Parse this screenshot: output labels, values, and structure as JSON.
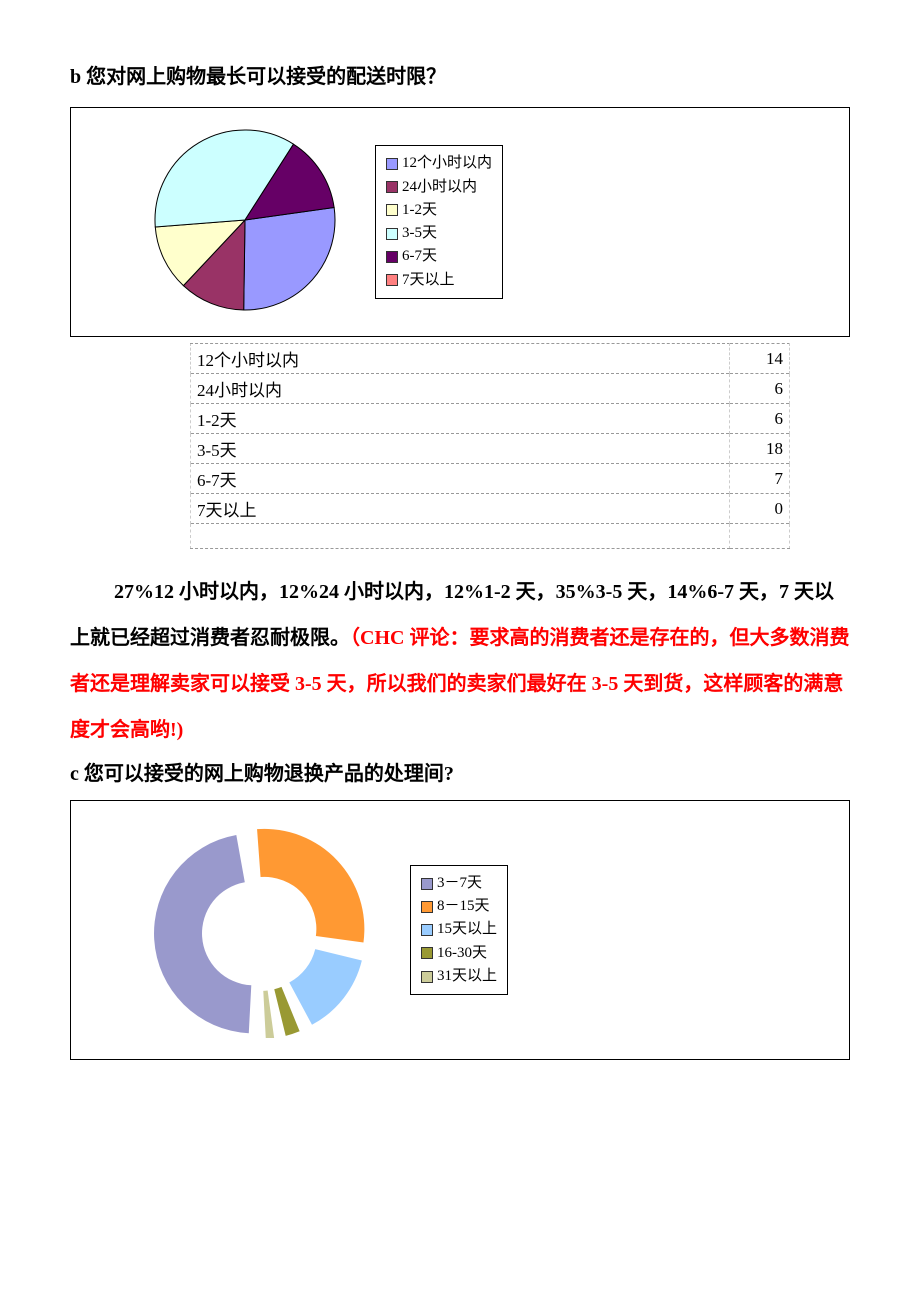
{
  "section_b": {
    "heading": "b 您对网上购物最长可以接受的配送时限？",
    "chart": {
      "type": "pie",
      "background_color": "#ffffff",
      "border_color": "#000000",
      "slices": [
        {
          "label": "12个小时以内",
          "value": 14,
          "color": "#9999ff"
        },
        {
          "label": "24小时以内",
          "value": 6,
          "color": "#993366"
        },
        {
          "label": "1-2天",
          "value": 6,
          "color": "#ffffcc"
        },
        {
          "label": "3-5天",
          "value": 18,
          "color": "#ccffff"
        },
        {
          "label": "6-7天",
          "value": 7,
          "color": "#660066"
        },
        {
          "label": "7天以上",
          "value": 0,
          "color": "#ff8080"
        }
      ],
      "start_angle_deg": -8,
      "radius": 90,
      "stroke": "#000000",
      "legend_fontsize": 15
    },
    "table": {
      "rows": [
        [
          "12个小时以内",
          "14"
        ],
        [
          "24小时以内",
          "6"
        ],
        [
          "1-2天",
          "6"
        ],
        [
          "3-5天",
          "18"
        ],
        [
          "6-7天",
          "7"
        ],
        [
          "7天以上",
          "0"
        ]
      ]
    },
    "analysis_parts": [
      {
        "text": "27%12 小时以内，12%24 小时以内，12%1-2 天，35%3-5 天，14%6-7 天，7 天以上就已经超过消费者忍耐极限。",
        "class": "black"
      },
      {
        "text": "（CHC 评论：要求高的消费者还是存在的，但大多数消费者还是理解卖家可以接受 3-5 天，所以我们的卖家们最好在 3-5 天到货，这样顾客的满意度才会高哟!)",
        "class": "red"
      }
    ]
  },
  "section_c": {
    "heading": "c 您可以接受的网上购物退换产品的处理间?",
    "chart": {
      "type": "donut",
      "background_color": "#ffffff",
      "border_color": "#000000",
      "slices": [
        {
          "label": "3－7天",
          "value": 48,
          "color": "#9999cc"
        },
        {
          "label": "8－15天",
          "value": 30,
          "color": "#ff9933"
        },
        {
          "label": "15天以上",
          "value": 15,
          "color": "#99ccff"
        },
        {
          "label": "16-30天",
          "value": 4,
          "color": "#999933"
        },
        {
          "label": "31天以上",
          "value": 3,
          "color": "#cccc99"
        }
      ],
      "start_angle_deg": 90,
      "gap_deg": 6,
      "outer_radius": 100,
      "inner_radius": 52,
      "legend_fontsize": 15
    }
  }
}
